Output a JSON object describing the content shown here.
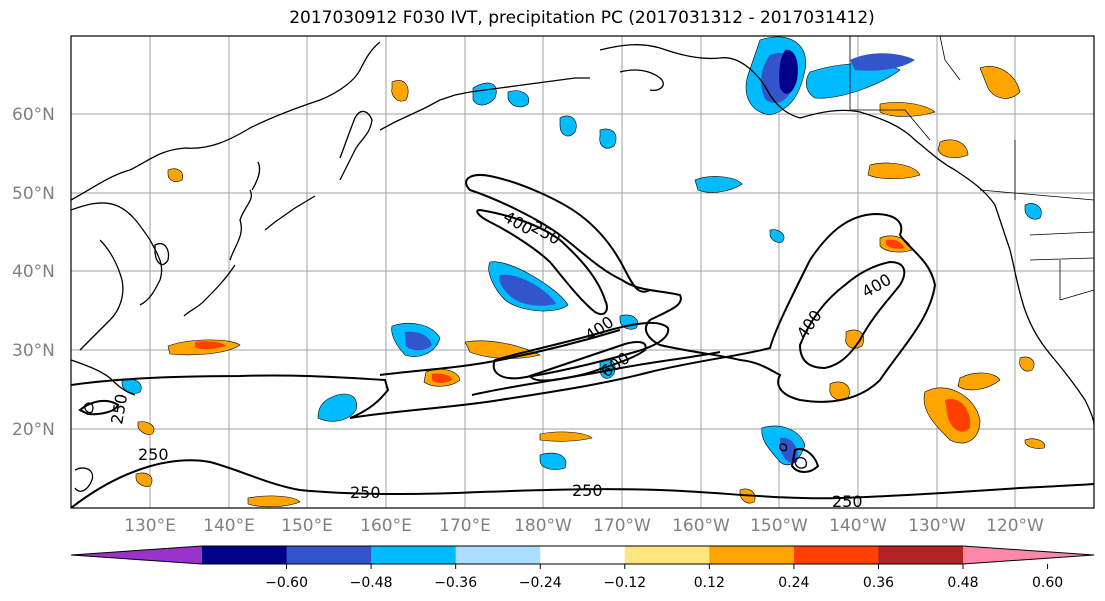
{
  "title": "2017030912 F030 IVT, precipitation PC (2017031312 - 2017031412)",
  "lat_labels": [
    "60°N",
    "50°N",
    "40°N",
    "30°N",
    "20°N"
  ],
  "lon_labels": [
    "130°E",
    "140°E",
    "150°E",
    "160°E",
    "170°E",
    "180°W",
    "170°W",
    "160°W",
    "150°W",
    "140°W",
    "130°W",
    "120°W"
  ],
  "colorbar": {
    "ticks": [
      "−0.60",
      "−0.48",
      "−0.36",
      "−0.24",
      "−0.12",
      "0.12",
      "0.24",
      "0.36",
      "0.48",
      "0.60"
    ],
    "colors": [
      "#9933cc",
      "#000088",
      "#3355cc",
      "#00bbff",
      "#aaddff",
      "#ffffff",
      "#ffe680",
      "#ffa500",
      "#ff4000",
      "#b22222",
      "#ff88aa"
    ]
  },
  "contour_labels": [
    "250",
    "400",
    "400",
    "600",
    "400",
    "400",
    "250",
    "250",
    "250",
    "250",
    "250"
  ],
  "chart_data": {
    "type": "heatmap",
    "title": "2017030912 F030 IVT, precipitation PC (2017031312 - 2017031412)",
    "color_scale_levels": [
      -0.6,
      -0.48,
      -0.36,
      -0.24,
      -0.12,
      0.12,
      0.24,
      0.36,
      0.48,
      0.6
    ],
    "contour_levels_ivt": [
      250,
      400,
      600
    ]
  }
}
